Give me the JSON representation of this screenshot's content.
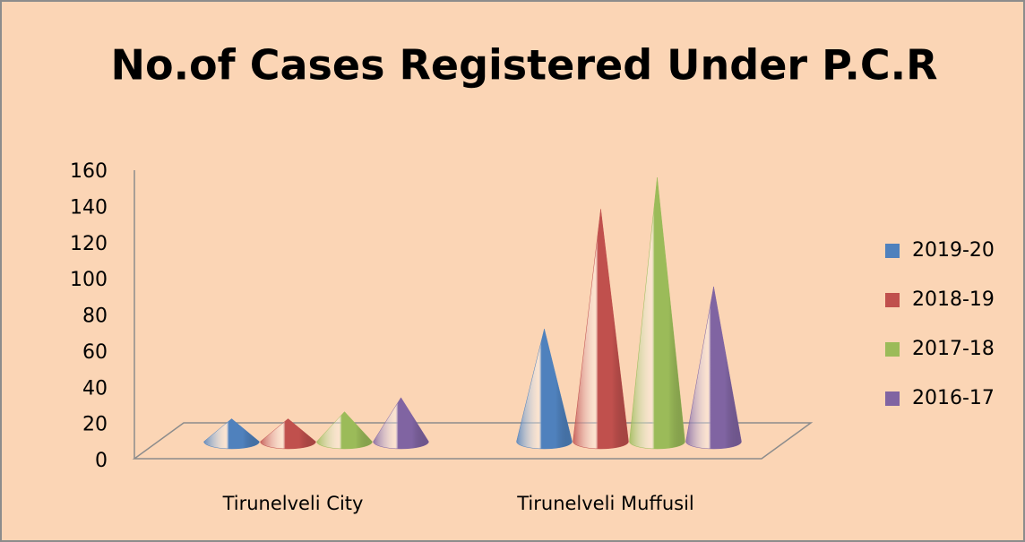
{
  "chart_data": {
    "type": "cone3d",
    "title": "No.of Cases Registered Under P.C.R",
    "categories": [
      "Tirunelveli City",
      "Tirunelveli Muffusil"
    ],
    "series": [
      {
        "name": "2019-20",
        "color": "#4f81bd",
        "values": [
          13,
          64
        ]
      },
      {
        "name": "2018-19",
        "color": "#c0504d",
        "values": [
          13,
          132
        ]
      },
      {
        "name": "2017-18",
        "color": "#9bbb59",
        "values": [
          17,
          150
        ]
      },
      {
        "name": "2016-17",
        "color": "#8064a2",
        "values": [
          25,
          88
        ]
      }
    ],
    "ylim": [
      0,
      160
    ],
    "yticks": [
      0,
      20,
      40,
      60,
      80,
      100,
      120,
      140,
      160
    ],
    "legend": "right"
  }
}
